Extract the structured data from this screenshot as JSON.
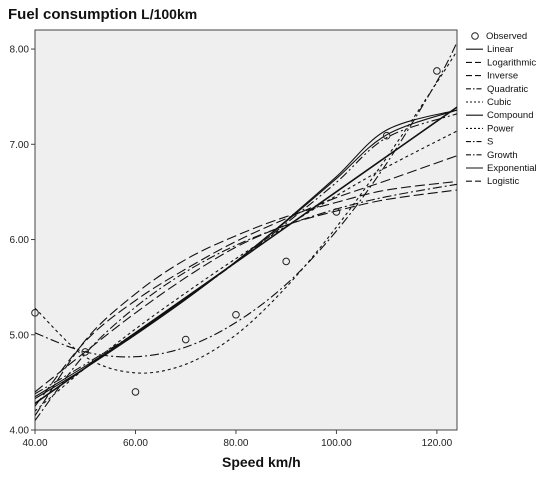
{
  "chart_data": {
    "type": "scatter",
    "title": "Fuel consumption",
    "title_unit": "L/100km",
    "xlabel": "Speed",
    "xlabel_unit": "km/h",
    "ylabel": "",
    "xlim": [
      40,
      124
    ],
    "ylim": [
      4.0,
      8.2
    ],
    "x_ticks": [
      "40.00",
      "60.00",
      "80.00",
      "100.00",
      "120.00"
    ],
    "y_ticks": [
      "4.00",
      "5.00",
      "6.00",
      "7.00",
      "8.00"
    ],
    "plot_background": "#efefef",
    "grid": false,
    "legend_position": "right",
    "observed": {
      "name": "Observed",
      "x": [
        40,
        50,
        60,
        70,
        80,
        90,
        100,
        110,
        120
      ],
      "y": [
        5.23,
        4.82,
        4.4,
        4.95,
        5.21,
        5.77,
        6.29,
        7.09,
        7.77
      ]
    },
    "series": [
      {
        "name": "Linear",
        "style": "solid",
        "x": [
          40,
          124
        ],
        "y": [
          4.28,
          7.39
        ]
      },
      {
        "name": "Logarithmic",
        "style": "longdash",
        "x": [
          40,
          50,
          60,
          70,
          80,
          90,
          100,
          110,
          124
        ],
        "y": [
          4.25,
          4.93,
          5.36,
          5.69,
          5.98,
          6.22,
          6.44,
          6.62,
          6.88
        ]
      },
      {
        "name": "Inverse",
        "style": "longdash",
        "x": [
          40,
          50,
          60,
          70,
          80,
          90,
          100,
          110,
          124
        ],
        "y": [
          4.15,
          4.94,
          5.43,
          5.79,
          6.04,
          6.24,
          6.39,
          6.52,
          6.61
        ]
      },
      {
        "name": "Quadratic",
        "style": "dashdot",
        "x": [
          40,
          50,
          60,
          70,
          80,
          90,
          100,
          110,
          120,
          124
        ],
        "y": [
          5.02,
          4.82,
          4.77,
          4.87,
          5.13,
          5.53,
          6.09,
          6.8,
          7.66,
          8.07
        ]
      },
      {
        "name": "Cubic",
        "style": "dotted",
        "x": [
          40,
          50,
          60,
          70,
          80,
          90,
          100,
          110,
          120,
          124
        ],
        "y": [
          5.28,
          4.77,
          4.6,
          4.69,
          5.0,
          5.5,
          6.13,
          6.86,
          7.65,
          7.98
        ]
      },
      {
        "name": "Compound",
        "style": "solid",
        "x": [
          40,
          50,
          60,
          70,
          80,
          90,
          100,
          110,
          124
        ],
        "y": [
          4.35,
          4.67,
          5.01,
          5.38,
          5.77,
          6.19,
          6.64,
          7.1,
          7.36
        ]
      },
      {
        "name": "Power",
        "style": "dotted",
        "x": [
          40,
          50,
          60,
          70,
          80,
          90,
          100,
          110,
          124
        ],
        "y": [
          4.2,
          4.65,
          5.06,
          5.44,
          5.8,
          6.14,
          6.46,
          6.76,
          7.14
        ]
      },
      {
        "name": "S",
        "style": "dashdot",
        "x": [
          40,
          50,
          60,
          70,
          80,
          90,
          100,
          110,
          124
        ],
        "y": [
          4.1,
          4.8,
          5.29,
          5.66,
          5.94,
          6.15,
          6.32,
          6.45,
          6.58
        ]
      },
      {
        "name": "Growth",
        "style": "dashdotdot",
        "x": [
          40,
          50,
          60,
          70,
          80,
          90,
          100,
          110,
          124
        ],
        "y": [
          4.38,
          4.69,
          5.02,
          5.38,
          5.76,
          6.17,
          6.6,
          7.07,
          7.32
        ]
      },
      {
        "name": "Exponential",
        "style": "solid",
        "x": [
          40,
          50,
          60,
          70,
          80,
          90,
          100,
          110,
          124
        ],
        "y": [
          4.33,
          4.65,
          5.0,
          5.37,
          5.77,
          6.2,
          6.66,
          7.15,
          7.36
        ]
      },
      {
        "name": "Logistic",
        "style": "longdash",
        "x": [
          40,
          50,
          60,
          70,
          80,
          90,
          100,
          110,
          124
        ],
        "y": [
          4.4,
          4.82,
          5.23,
          5.6,
          5.92,
          6.15,
          6.3,
          6.42,
          6.52
        ]
      }
    ]
  }
}
